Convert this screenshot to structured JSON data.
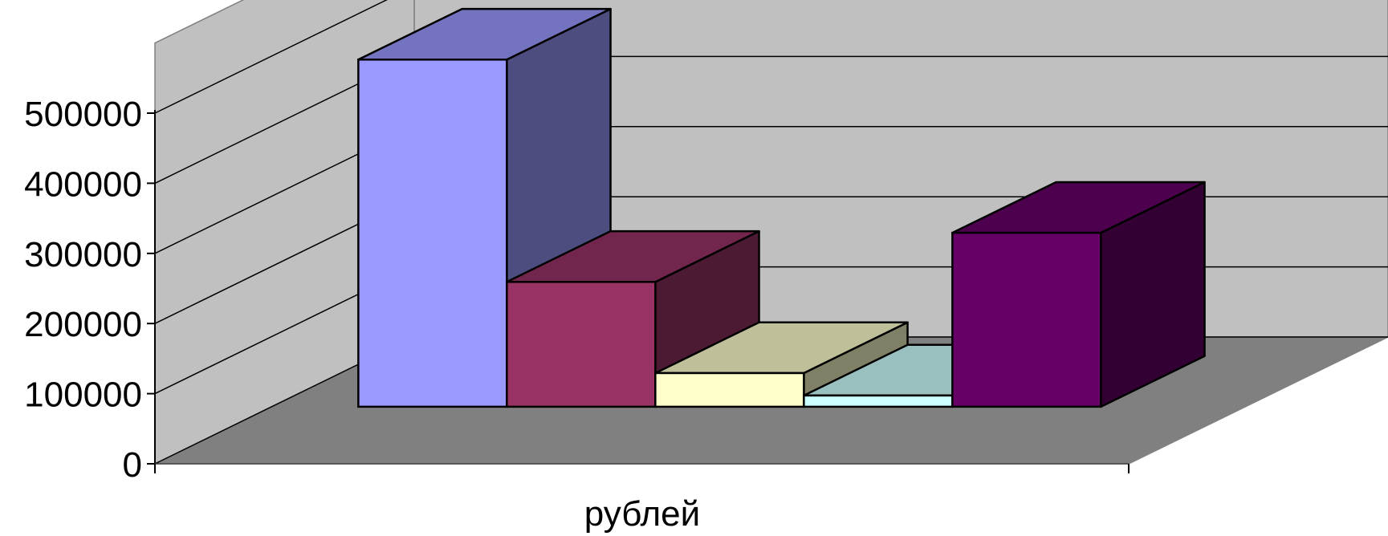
{
  "chart_data": {
    "type": "bar",
    "three_d": true,
    "xlabel": "рублей",
    "ylabel": "",
    "title": "",
    "ylim": [
      0,
      500000
    ],
    "yticks": [
      0,
      100000,
      200000,
      300000,
      400000,
      500000
    ],
    "ytick_labels": [
      "0",
      "100000",
      "200000",
      "300000",
      "400000",
      "500000"
    ],
    "grid": true,
    "legend": "none",
    "categories": [
      "рублей"
    ],
    "series": [
      {
        "values": [
          495000
        ],
        "color": "#9999ff"
      },
      {
        "values": [
          178000
        ],
        "color": "#993366"
      },
      {
        "values": [
          48000
        ],
        "color": "#ffffcc"
      },
      {
        "values": [
          16000
        ],
        "color": "#ccffff"
      },
      {
        "values": [
          248000
        ],
        "color": "#660066"
      }
    ]
  },
  "colors": {
    "wall": "#c0c0c0",
    "floor": "#808080",
    "gridline": "#000000",
    "bar_outline": "#000000"
  }
}
